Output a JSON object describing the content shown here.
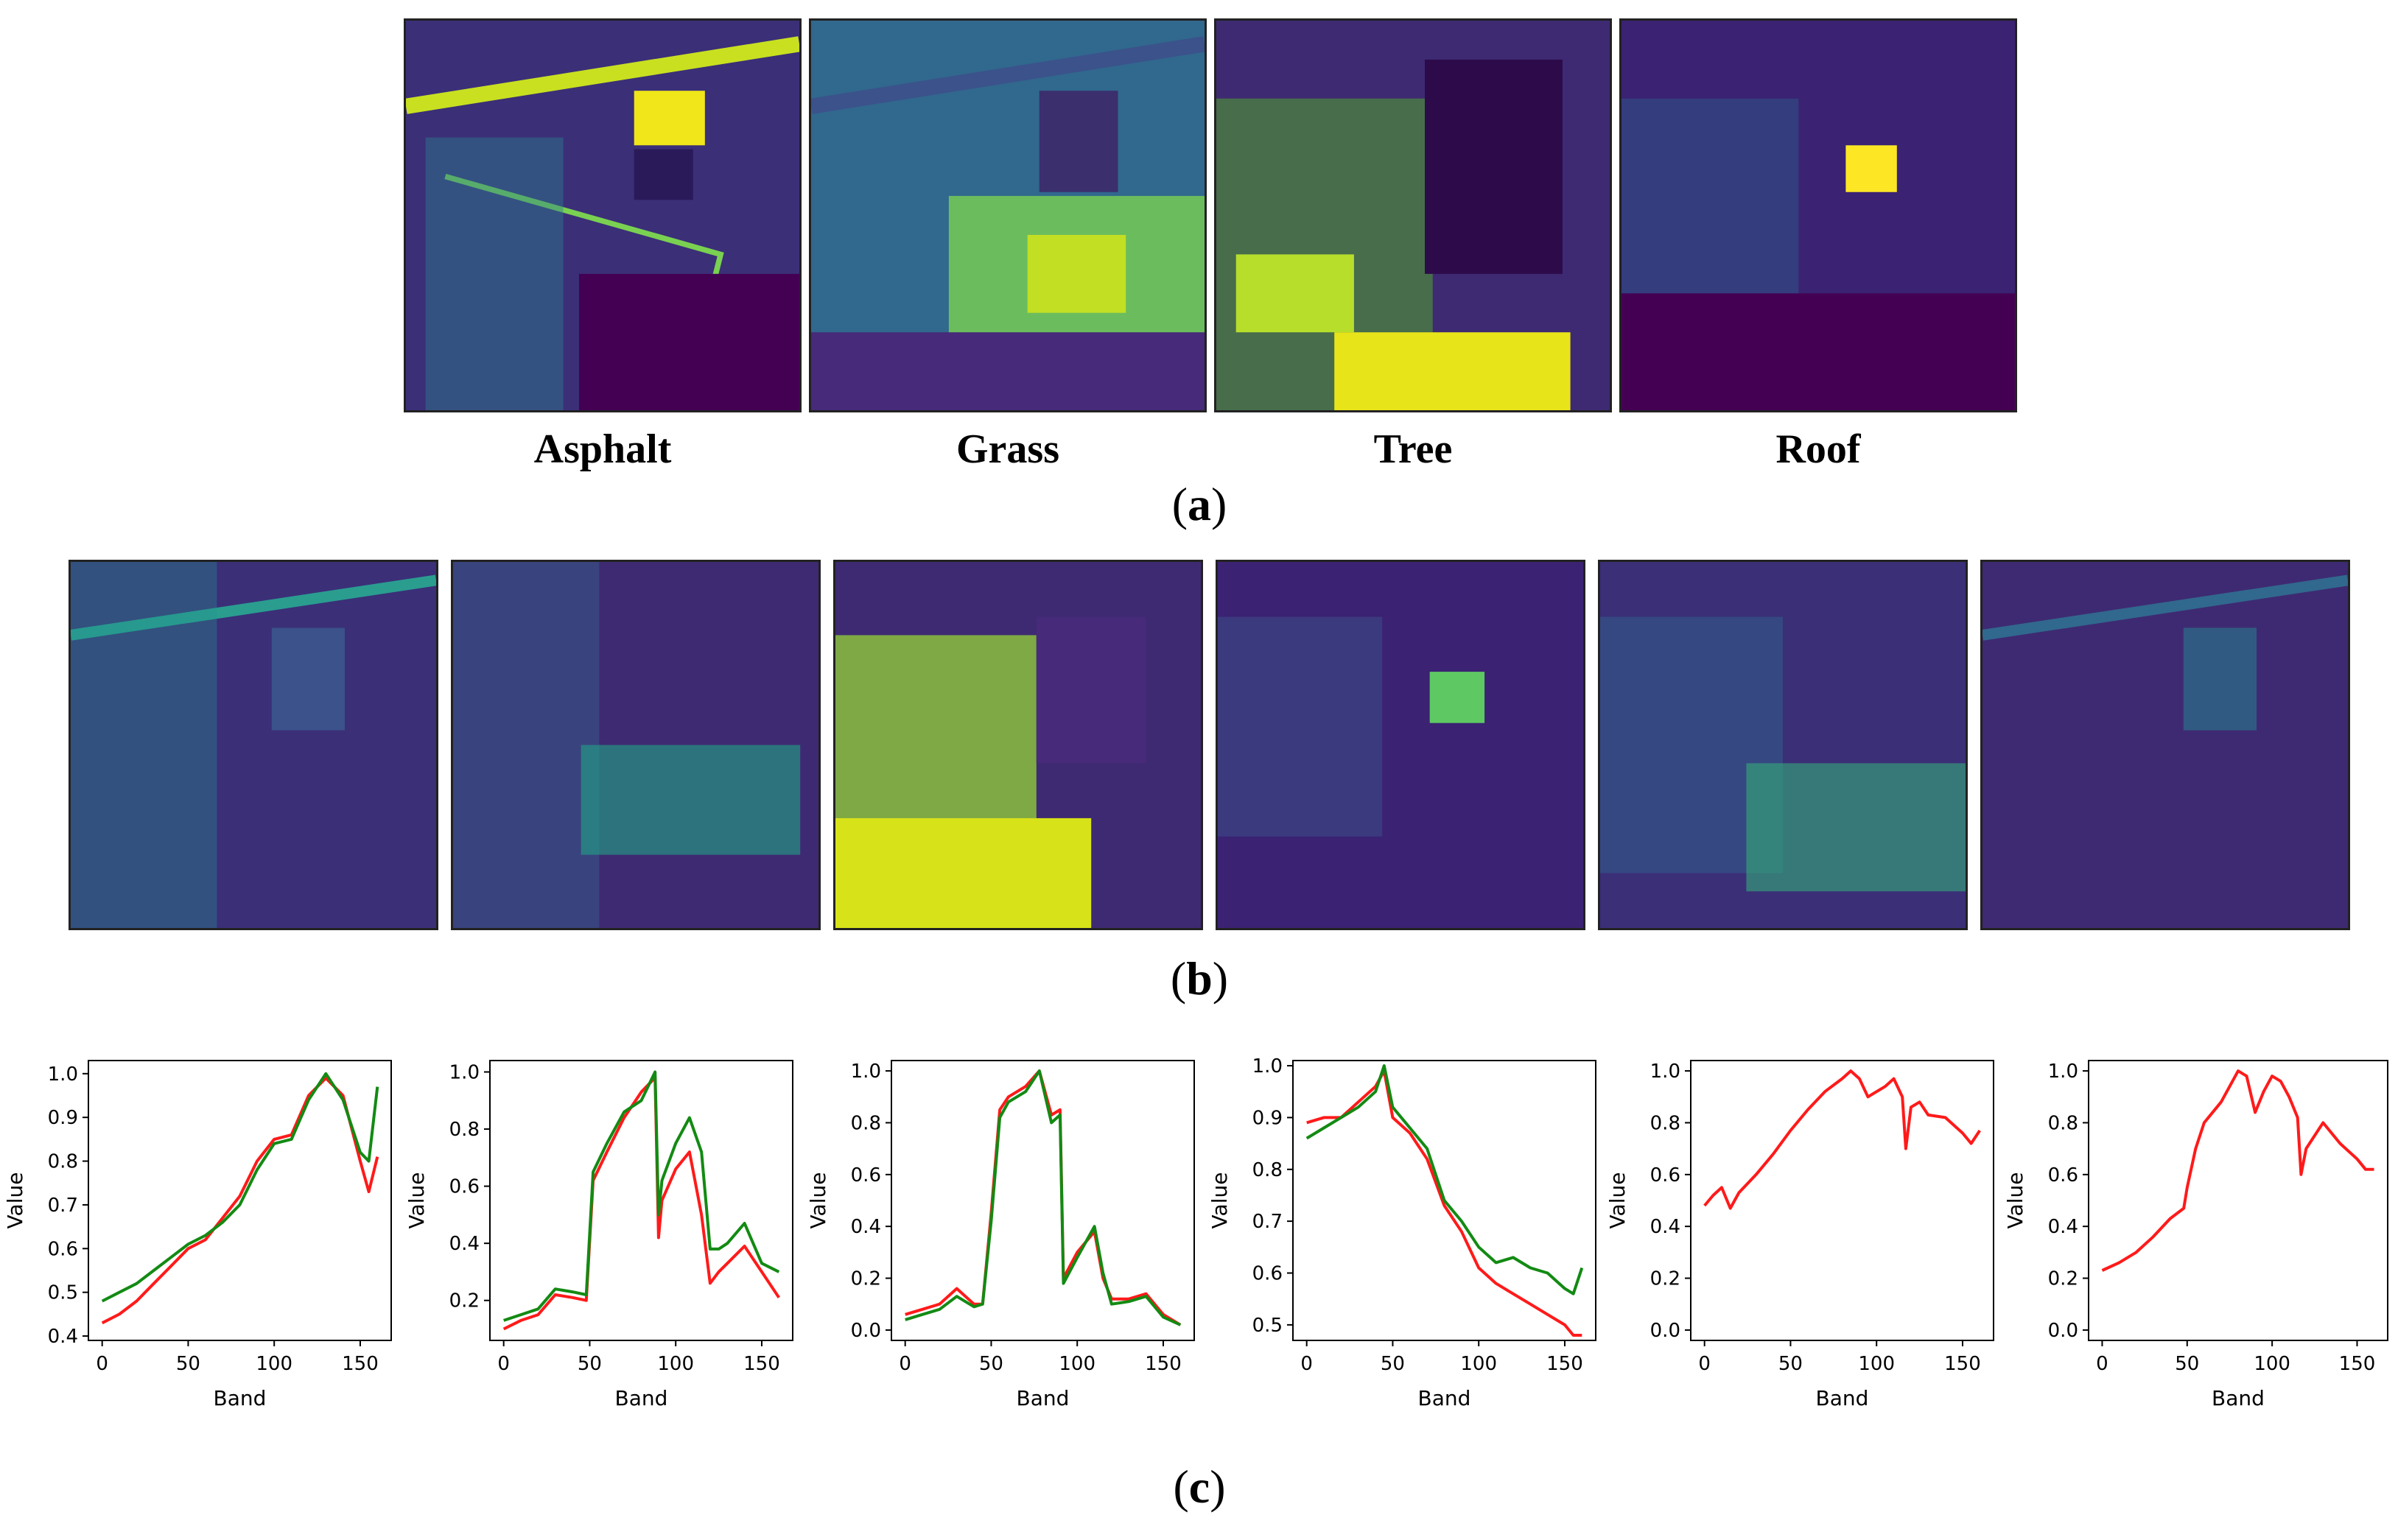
{
  "panels": {
    "a": {
      "tag_open": "(",
      "tag_letter": "a",
      "tag_close": ")",
      "labels": [
        "Asphalt",
        "Grass",
        "Tree",
        "Roof"
      ]
    },
    "b": {
      "tag_open": "(",
      "tag_letter": "b",
      "tag_close": ")"
    },
    "c": {
      "tag_open": "(",
      "tag_letter": "c",
      "tag_close": ")"
    }
  },
  "colors": {
    "series_red": "#ff1a1a",
    "series_green": "#138a13",
    "viridis_dark": "#440154",
    "viridis_mid": "#3b528b",
    "viridis_teal": "#21918c",
    "viridis_green": "#5ec962",
    "viridis_yellow": "#fde725"
  },
  "chart_data": [
    {
      "type": "line",
      "xlabel": "Band",
      "ylabel": "Value",
      "xlim": [
        -8,
        168
      ],
      "ylim": [
        0.39,
        1.03
      ],
      "xticks": [
        0,
        50,
        100,
        150
      ],
      "yticks": [
        0.4,
        0.5,
        0.6,
        0.7,
        0.8,
        0.9,
        1.0
      ],
      "series": [
        {
          "name": "red",
          "x": [
            0,
            10,
            20,
            30,
            40,
            50,
            60,
            70,
            80,
            90,
            100,
            110,
            120,
            130,
            140,
            150,
            155,
            160
          ],
          "values": [
            0.43,
            0.45,
            0.48,
            0.52,
            0.56,
            0.6,
            0.62,
            0.67,
            0.72,
            0.8,
            0.85,
            0.86,
            0.95,
            0.99,
            0.95,
            0.8,
            0.73,
            0.81
          ]
        },
        {
          "name": "green",
          "x": [
            0,
            10,
            20,
            30,
            40,
            50,
            60,
            70,
            80,
            90,
            100,
            110,
            120,
            130,
            140,
            150,
            155,
            160
          ],
          "values": [
            0.48,
            0.5,
            0.52,
            0.55,
            0.58,
            0.61,
            0.63,
            0.66,
            0.7,
            0.78,
            0.84,
            0.85,
            0.94,
            1.0,
            0.94,
            0.82,
            0.8,
            0.97
          ]
        }
      ]
    },
    {
      "type": "line",
      "xlabel": "Band",
      "ylabel": "Value",
      "xlim": [
        -8,
        168
      ],
      "ylim": [
        0.06,
        1.04
      ],
      "xticks": [
        0,
        50,
        100,
        150
      ],
      "yticks": [
        0.2,
        0.4,
        0.6,
        0.8,
        1.0
      ],
      "series": [
        {
          "name": "red",
          "x": [
            0,
            10,
            20,
            30,
            40,
            48,
            52,
            60,
            70,
            80,
            88,
            90,
            92,
            100,
            108,
            115,
            120,
            125,
            130,
            140,
            150,
            160
          ],
          "values": [
            0.1,
            0.13,
            0.15,
            0.22,
            0.21,
            0.2,
            0.62,
            0.72,
            0.84,
            0.93,
            0.98,
            0.42,
            0.55,
            0.66,
            0.72,
            0.5,
            0.26,
            0.3,
            0.33,
            0.39,
            0.3,
            0.21
          ]
        },
        {
          "name": "green",
          "x": [
            0,
            10,
            20,
            30,
            40,
            48,
            52,
            60,
            70,
            80,
            88,
            90,
            92,
            100,
            108,
            115,
            120,
            125,
            130,
            140,
            150,
            160
          ],
          "values": [
            0.13,
            0.15,
            0.17,
            0.24,
            0.23,
            0.22,
            0.65,
            0.75,
            0.86,
            0.9,
            1.0,
            0.5,
            0.62,
            0.75,
            0.84,
            0.72,
            0.38,
            0.38,
            0.4,
            0.47,
            0.33,
            0.3
          ]
        }
      ]
    },
    {
      "type": "line",
      "xlabel": "Band",
      "ylabel": "Value",
      "xlim": [
        -8,
        168
      ],
      "ylim": [
        -0.04,
        1.04
      ],
      "xticks": [
        0,
        50,
        100,
        150
      ],
      "yticks": [
        0.0,
        0.2,
        0.4,
        0.6,
        0.8,
        1.0
      ],
      "series": [
        {
          "name": "red",
          "x": [
            0,
            10,
            20,
            30,
            40,
            45,
            50,
            55,
            60,
            70,
            78,
            85,
            90,
            92,
            100,
            110,
            115,
            120,
            130,
            140,
            150,
            160
          ],
          "values": [
            0.06,
            0.08,
            0.1,
            0.16,
            0.1,
            0.1,
            0.45,
            0.85,
            0.9,
            0.94,
            1.0,
            0.83,
            0.85,
            0.2,
            0.3,
            0.38,
            0.2,
            0.12,
            0.12,
            0.14,
            0.06,
            0.02
          ]
        },
        {
          "name": "green",
          "x": [
            0,
            10,
            20,
            30,
            40,
            45,
            50,
            55,
            60,
            70,
            78,
            85,
            90,
            92,
            100,
            110,
            115,
            120,
            130,
            140,
            150,
            160
          ],
          "values": [
            0.04,
            0.06,
            0.08,
            0.13,
            0.09,
            0.1,
            0.42,
            0.82,
            0.88,
            0.92,
            1.0,
            0.8,
            0.83,
            0.18,
            0.28,
            0.4,
            0.22,
            0.1,
            0.11,
            0.13,
            0.05,
            0.02
          ]
        }
      ]
    },
    {
      "type": "line",
      "xlabel": "Band",
      "ylabel": "Value",
      "xlim": [
        -8,
        168
      ],
      "ylim": [
        0.47,
        1.01
      ],
      "xticks": [
        0,
        50,
        100,
        150
      ],
      "yticks": [
        0.5,
        0.6,
        0.7,
        0.8,
        0.9,
        1.0
      ],
      "series": [
        {
          "name": "red",
          "x": [
            0,
            10,
            20,
            30,
            40,
            45,
            50,
            60,
            70,
            80,
            90,
            100,
            110,
            120,
            130,
            140,
            150,
            155,
            160
          ],
          "values": [
            0.89,
            0.9,
            0.9,
            0.93,
            0.96,
            0.99,
            0.9,
            0.87,
            0.82,
            0.73,
            0.68,
            0.61,
            0.58,
            0.56,
            0.54,
            0.52,
            0.5,
            0.48,
            0.48
          ]
        },
        {
          "name": "green",
          "x": [
            0,
            10,
            20,
            30,
            40,
            45,
            50,
            60,
            70,
            80,
            90,
            100,
            110,
            120,
            130,
            140,
            150,
            155,
            160
          ],
          "values": [
            0.86,
            0.88,
            0.9,
            0.92,
            0.95,
            1.0,
            0.92,
            0.88,
            0.84,
            0.74,
            0.7,
            0.65,
            0.62,
            0.63,
            0.61,
            0.6,
            0.57,
            0.56,
            0.61
          ]
        }
      ]
    },
    {
      "type": "line",
      "xlabel": "Band",
      "ylabel": "Value",
      "xlim": [
        -8,
        168
      ],
      "ylim": [
        -0.04,
        1.04
      ],
      "xticks": [
        0,
        50,
        100,
        150
      ],
      "yticks": [
        0.0,
        0.2,
        0.4,
        0.6,
        0.8,
        1.0
      ],
      "series": [
        {
          "name": "red",
          "x": [
            0,
            5,
            10,
            15,
            20,
            30,
            40,
            50,
            60,
            70,
            80,
            85,
            90,
            95,
            100,
            105,
            110,
            115,
            117,
            120,
            125,
            130,
            140,
            150,
            155,
            160
          ],
          "values": [
            0.48,
            0.52,
            0.55,
            0.47,
            0.53,
            0.6,
            0.68,
            0.77,
            0.85,
            0.92,
            0.97,
            1.0,
            0.97,
            0.9,
            0.92,
            0.94,
            0.97,
            0.9,
            0.7,
            0.86,
            0.88,
            0.83,
            0.82,
            0.76,
            0.72,
            0.77
          ]
        }
      ]
    },
    {
      "type": "line",
      "xlabel": "Band",
      "ylabel": "Value",
      "xlim": [
        -8,
        168
      ],
      "ylim": [
        -0.04,
        1.04
      ],
      "xticks": [
        0,
        50,
        100,
        150
      ],
      "yticks": [
        0.0,
        0.2,
        0.4,
        0.6,
        0.8,
        1.0
      ],
      "series": [
        {
          "name": "red",
          "x": [
            0,
            10,
            20,
            30,
            40,
            48,
            50,
            55,
            60,
            70,
            80,
            85,
            90,
            95,
            100,
            105,
            110,
            115,
            117,
            120,
            130,
            140,
            150,
            155,
            160
          ],
          "values": [
            0.23,
            0.26,
            0.3,
            0.36,
            0.43,
            0.47,
            0.55,
            0.7,
            0.8,
            0.88,
            1.0,
            0.98,
            0.84,
            0.92,
            0.98,
            0.96,
            0.9,
            0.82,
            0.6,
            0.7,
            0.8,
            0.72,
            0.66,
            0.62,
            0.62
          ]
        }
      ]
    }
  ]
}
